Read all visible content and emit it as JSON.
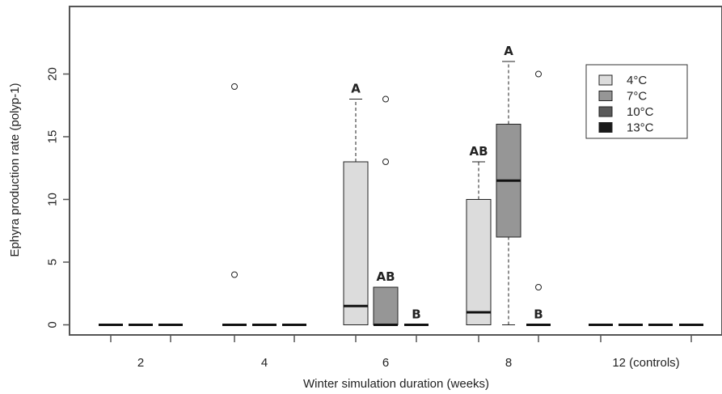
{
  "chart_data": {
    "type": "boxplot",
    "xlabel": "Winter simulation duration (weeks)",
    "ylabel": "Ephyra production rate (polyp-1)",
    "ylim": [
      0,
      22
    ],
    "y_ticks": [
      0,
      5,
      10,
      15,
      20
    ],
    "groups": [
      "2",
      "4",
      "6",
      "8",
      "12 (controls)"
    ],
    "legend": {
      "position": "top-right",
      "items": [
        {
          "label": "4°C",
          "color": "#dcdcdc"
        },
        {
          "label": "7°C",
          "color": "#969696"
        },
        {
          "label": "10°C",
          "color": "#5a5a5a"
        },
        {
          "label": "13°C",
          "color": "#1a1a1a"
        }
      ]
    },
    "boxes": [
      {
        "group": "2",
        "series": "4°C",
        "min": 0,
        "q1": 0,
        "median": 0,
        "q3": 0,
        "max": 0,
        "outliers": []
      },
      {
        "group": "2",
        "series": "7°C",
        "min": 0,
        "q1": 0,
        "median": 0,
        "q3": 0,
        "max": 0,
        "outliers": []
      },
      {
        "group": "2",
        "series": "10°C",
        "min": 0,
        "q1": 0,
        "median": 0,
        "q3": 0,
        "max": 0,
        "outliers": []
      },
      {
        "group": "4",
        "series": "4°C",
        "min": 0,
        "q1": 0,
        "median": 0,
        "q3": 0,
        "max": 0,
        "outliers": [
          4,
          19
        ]
      },
      {
        "group": "4",
        "series": "7°C",
        "min": 0,
        "q1": 0,
        "median": 0,
        "q3": 0,
        "max": 0,
        "outliers": []
      },
      {
        "group": "4",
        "series": "10°C",
        "min": 0,
        "q1": 0,
        "median": 0,
        "q3": 0,
        "max": 0,
        "outliers": []
      },
      {
        "group": "6",
        "series": "4°C",
        "min": 0,
        "q1": 0,
        "median": 1.5,
        "q3": 13,
        "max": 18,
        "outliers": [],
        "label": "A"
      },
      {
        "group": "6",
        "series": "7°C",
        "min": 0,
        "q1": 0,
        "median": 0,
        "q3": 3,
        "max": 3,
        "outliers": [
          13,
          18
        ],
        "label": "AB"
      },
      {
        "group": "6",
        "series": "10°C",
        "min": 0,
        "q1": 0,
        "median": 0,
        "q3": 0,
        "max": 0,
        "outliers": [],
        "label": "B"
      },
      {
        "group": "8",
        "series": "4°C",
        "min": 0,
        "q1": 0,
        "median": 1,
        "q3": 10,
        "max": 13,
        "outliers": [],
        "label": "AB"
      },
      {
        "group": "8",
        "series": "7°C",
        "min": 0,
        "q1": 7,
        "median": 11.5,
        "q3": 16,
        "max": 21,
        "outliers": [],
        "label": "A"
      },
      {
        "group": "8",
        "series": "10°C",
        "min": 0,
        "q1": 0,
        "median": 0,
        "q3": 0,
        "max": 0,
        "outliers": [
          3,
          20
        ],
        "label": "B"
      },
      {
        "group": "12 (controls)",
        "series": "4°C",
        "min": 0,
        "q1": 0,
        "median": 0,
        "q3": 0,
        "max": 0,
        "outliers": []
      },
      {
        "group": "12 (controls)",
        "series": "7°C",
        "min": 0,
        "q1": 0,
        "median": 0,
        "q3": 0,
        "max": 0,
        "outliers": []
      },
      {
        "group": "12 (controls)",
        "series": "10°C",
        "min": 0,
        "q1": 0,
        "median": 0,
        "q3": 0,
        "max": 0,
        "outliers": []
      },
      {
        "group": "12 (controls)",
        "series": "13°C",
        "min": 0,
        "q1": 0,
        "median": 0,
        "q3": 0,
        "max": 0,
        "outliers": []
      }
    ]
  }
}
